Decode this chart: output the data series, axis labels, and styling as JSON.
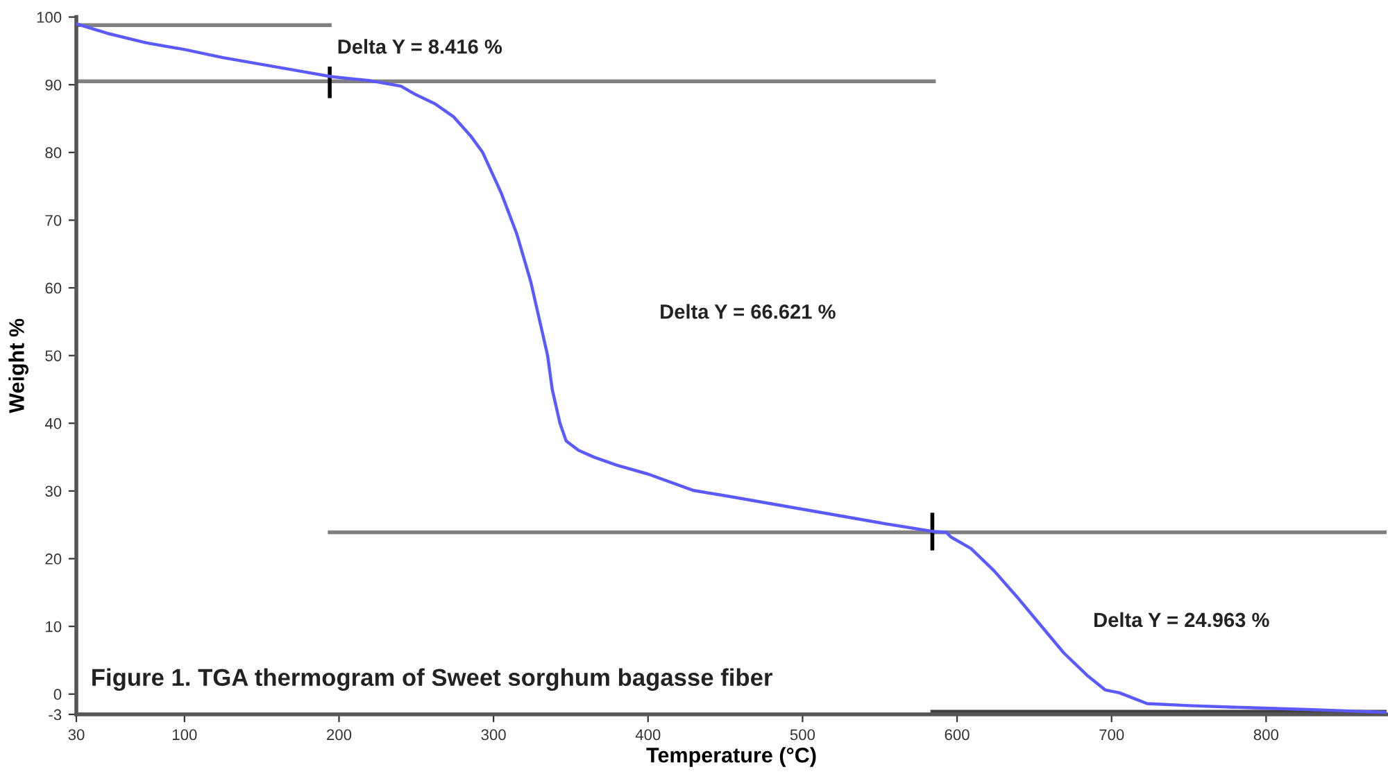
{
  "chart_data": {
    "type": "line",
    "xlabel": "Temperature (°C)",
    "ylabel": "Weight %",
    "xlim": [
      30,
      878
    ],
    "ylim": [
      -3,
      100
    ],
    "xticks": [
      30,
      100,
      200,
      300,
      400,
      500,
      600,
      700,
      800
    ],
    "yticks": [
      -3,
      0,
      10,
      20,
      30,
      40,
      50,
      60,
      70,
      80,
      90,
      100
    ],
    "grid": false,
    "legend": false,
    "marker": "none",
    "line_style": "solid",
    "series": [
      {
        "color": "#5a5aff",
        "x": [
          30,
          50,
          75,
          100,
          125,
          150,
          175,
          195,
          220,
          240,
          250,
          262,
          274,
          285,
          293,
          305,
          315,
          324,
          330,
          335,
          338,
          343,
          347,
          355,
          365,
          380,
          400,
          429,
          450,
          500,
          550,
          585,
          593,
          596,
          609,
          624,
          639,
          654,
          669,
          684,
          696,
          705,
          714,
          723,
          750,
          788,
          830,
          878
        ],
        "values": [
          99.0,
          97.6,
          96.2,
          95.2,
          94.0,
          93.0,
          92.0,
          91.2,
          90.6,
          89.8,
          88.5,
          87.2,
          85.3,
          82.5,
          80,
          74,
          68,
          61,
          55,
          50,
          45,
          40,
          37.4,
          36.0,
          35.0,
          33.8,
          32.5,
          30.1,
          29.3,
          27.3,
          25.3,
          24.0,
          23.9,
          23.2,
          21.5,
          18.2,
          14.3,
          10.2,
          6.1,
          2.8,
          0.6,
          0.2,
          -0.6,
          -1.4,
          -1.7,
          -2.0,
          -2.3,
          -2.7
        ]
      },
      {
        "color": "#808080",
        "x": [
          30,
          194
        ],
        "values": [
          98.8,
          98.8
        ]
      },
      {
        "color": "#808080",
        "x": [
          30,
          585
        ],
        "values": [
          90.5,
          90.5
        ]
      },
      {
        "color": "#808080",
        "x": [
          194,
          878
        ],
        "values": [
          23.9,
          23.9
        ]
      },
      {
        "color": "#404040",
        "x": [
          584,
          878
        ],
        "values": [
          -2.6,
          -2.6
        ]
      },
      {
        "color": "#000000",
        "x": [
          194,
          194
        ],
        "values": [
          88.3,
          92.4
        ]
      },
      {
        "color": "#000000",
        "x": [
          584,
          584
        ],
        "values": [
          21.5,
          26.5
        ]
      }
    ],
    "annotations": [
      "Delta Y = 8.416 %",
      "Delta Y = 66.621 %",
      "Delta Y = 24.963 %",
      "Figure 1. TGA thermogram of Sweet sorghum bagasse fiber"
    ]
  }
}
